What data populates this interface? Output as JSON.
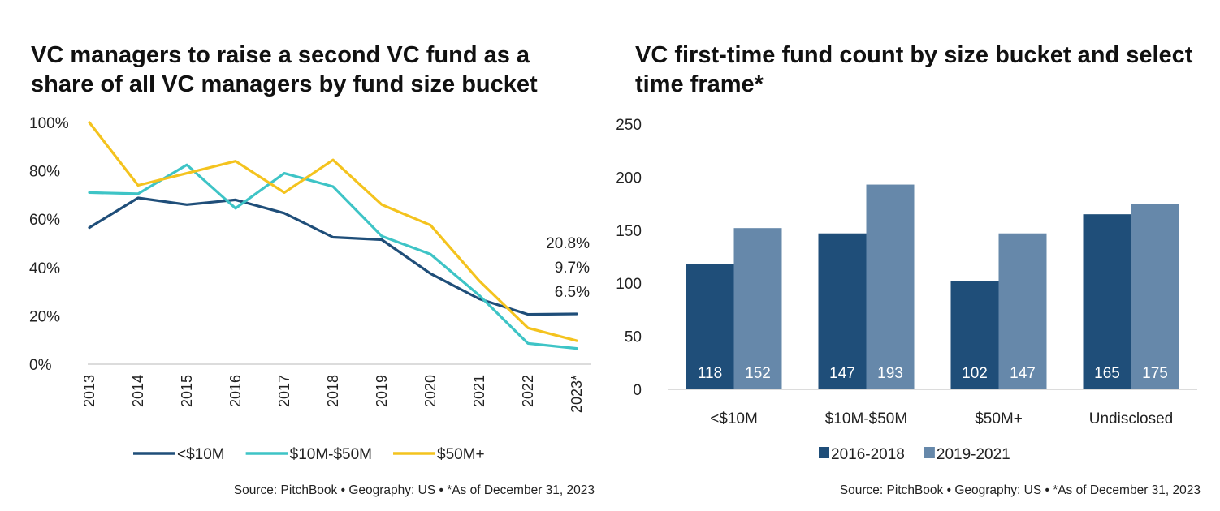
{
  "colors": {
    "dark_navy": "#1f4e79",
    "turquoise": "#3ec4c6",
    "gold": "#f4c31e",
    "steel_blue": "#6688aa"
  },
  "chart_data": [
    {
      "type": "line",
      "title": "VC managers to raise a second VC fund as a share of all VC managers by fund size bucket",
      "x": [
        "2013",
        "2014",
        "2015",
        "2016",
        "2017",
        "2018",
        "2019",
        "2020",
        "2021",
        "2022",
        "2023*"
      ],
      "ylim": [
        0,
        100
      ],
      "yticks": [
        "0%",
        "20%",
        "40%",
        "60%",
        "80%",
        "100%"
      ],
      "series": [
        {
          "name": "<$10M",
          "color": "#1f4e79",
          "values": [
            56.5,
            68.8,
            66.0,
            68.0,
            62.5,
            52.5,
            51.5,
            37.5,
            27.0,
            20.6,
            20.8
          ]
        },
        {
          "name": "$10M-$50M",
          "color": "#3ec4c6",
          "values": [
            71.0,
            70.5,
            82.5,
            64.5,
            79.0,
            73.5,
            53.0,
            45.5,
            28.5,
            8.6,
            6.5
          ]
        },
        {
          "name": "$50M+",
          "color": "#f4c31e",
          "values": [
            100.0,
            74.0,
            79.0,
            84.0,
            71.0,
            84.5,
            66.0,
            57.5,
            34.5,
            15.0,
            9.7
          ]
        }
      ],
      "annotations": [
        "20.8%",
        "9.7%",
        "6.5%"
      ],
      "legend_position": "bottom",
      "source": "Source: PitchBook  •  Geography: US  •  *As of December 31, 2023"
    },
    {
      "type": "bar",
      "title": "VC first-time fund count by size bucket and select time frame*",
      "categories": [
        "<$10M",
        "$10M-$50M",
        "$50M+",
        "Undisclosed"
      ],
      "ylim": [
        0,
        250
      ],
      "yticks": [
        "0",
        "50",
        "100",
        "150",
        "200",
        "250"
      ],
      "series": [
        {
          "name": "2016-2018",
          "color": "#1f4e79",
          "values": [
            118,
            147,
            102,
            165
          ]
        },
        {
          "name": "2019-2021",
          "color": "#6688aa",
          "values": [
            152,
            193,
            147,
            175
          ]
        }
      ],
      "legend_position": "bottom",
      "source": "Source: PitchBook  •  Geography: US  •  *As of December 31, 2023"
    }
  ]
}
